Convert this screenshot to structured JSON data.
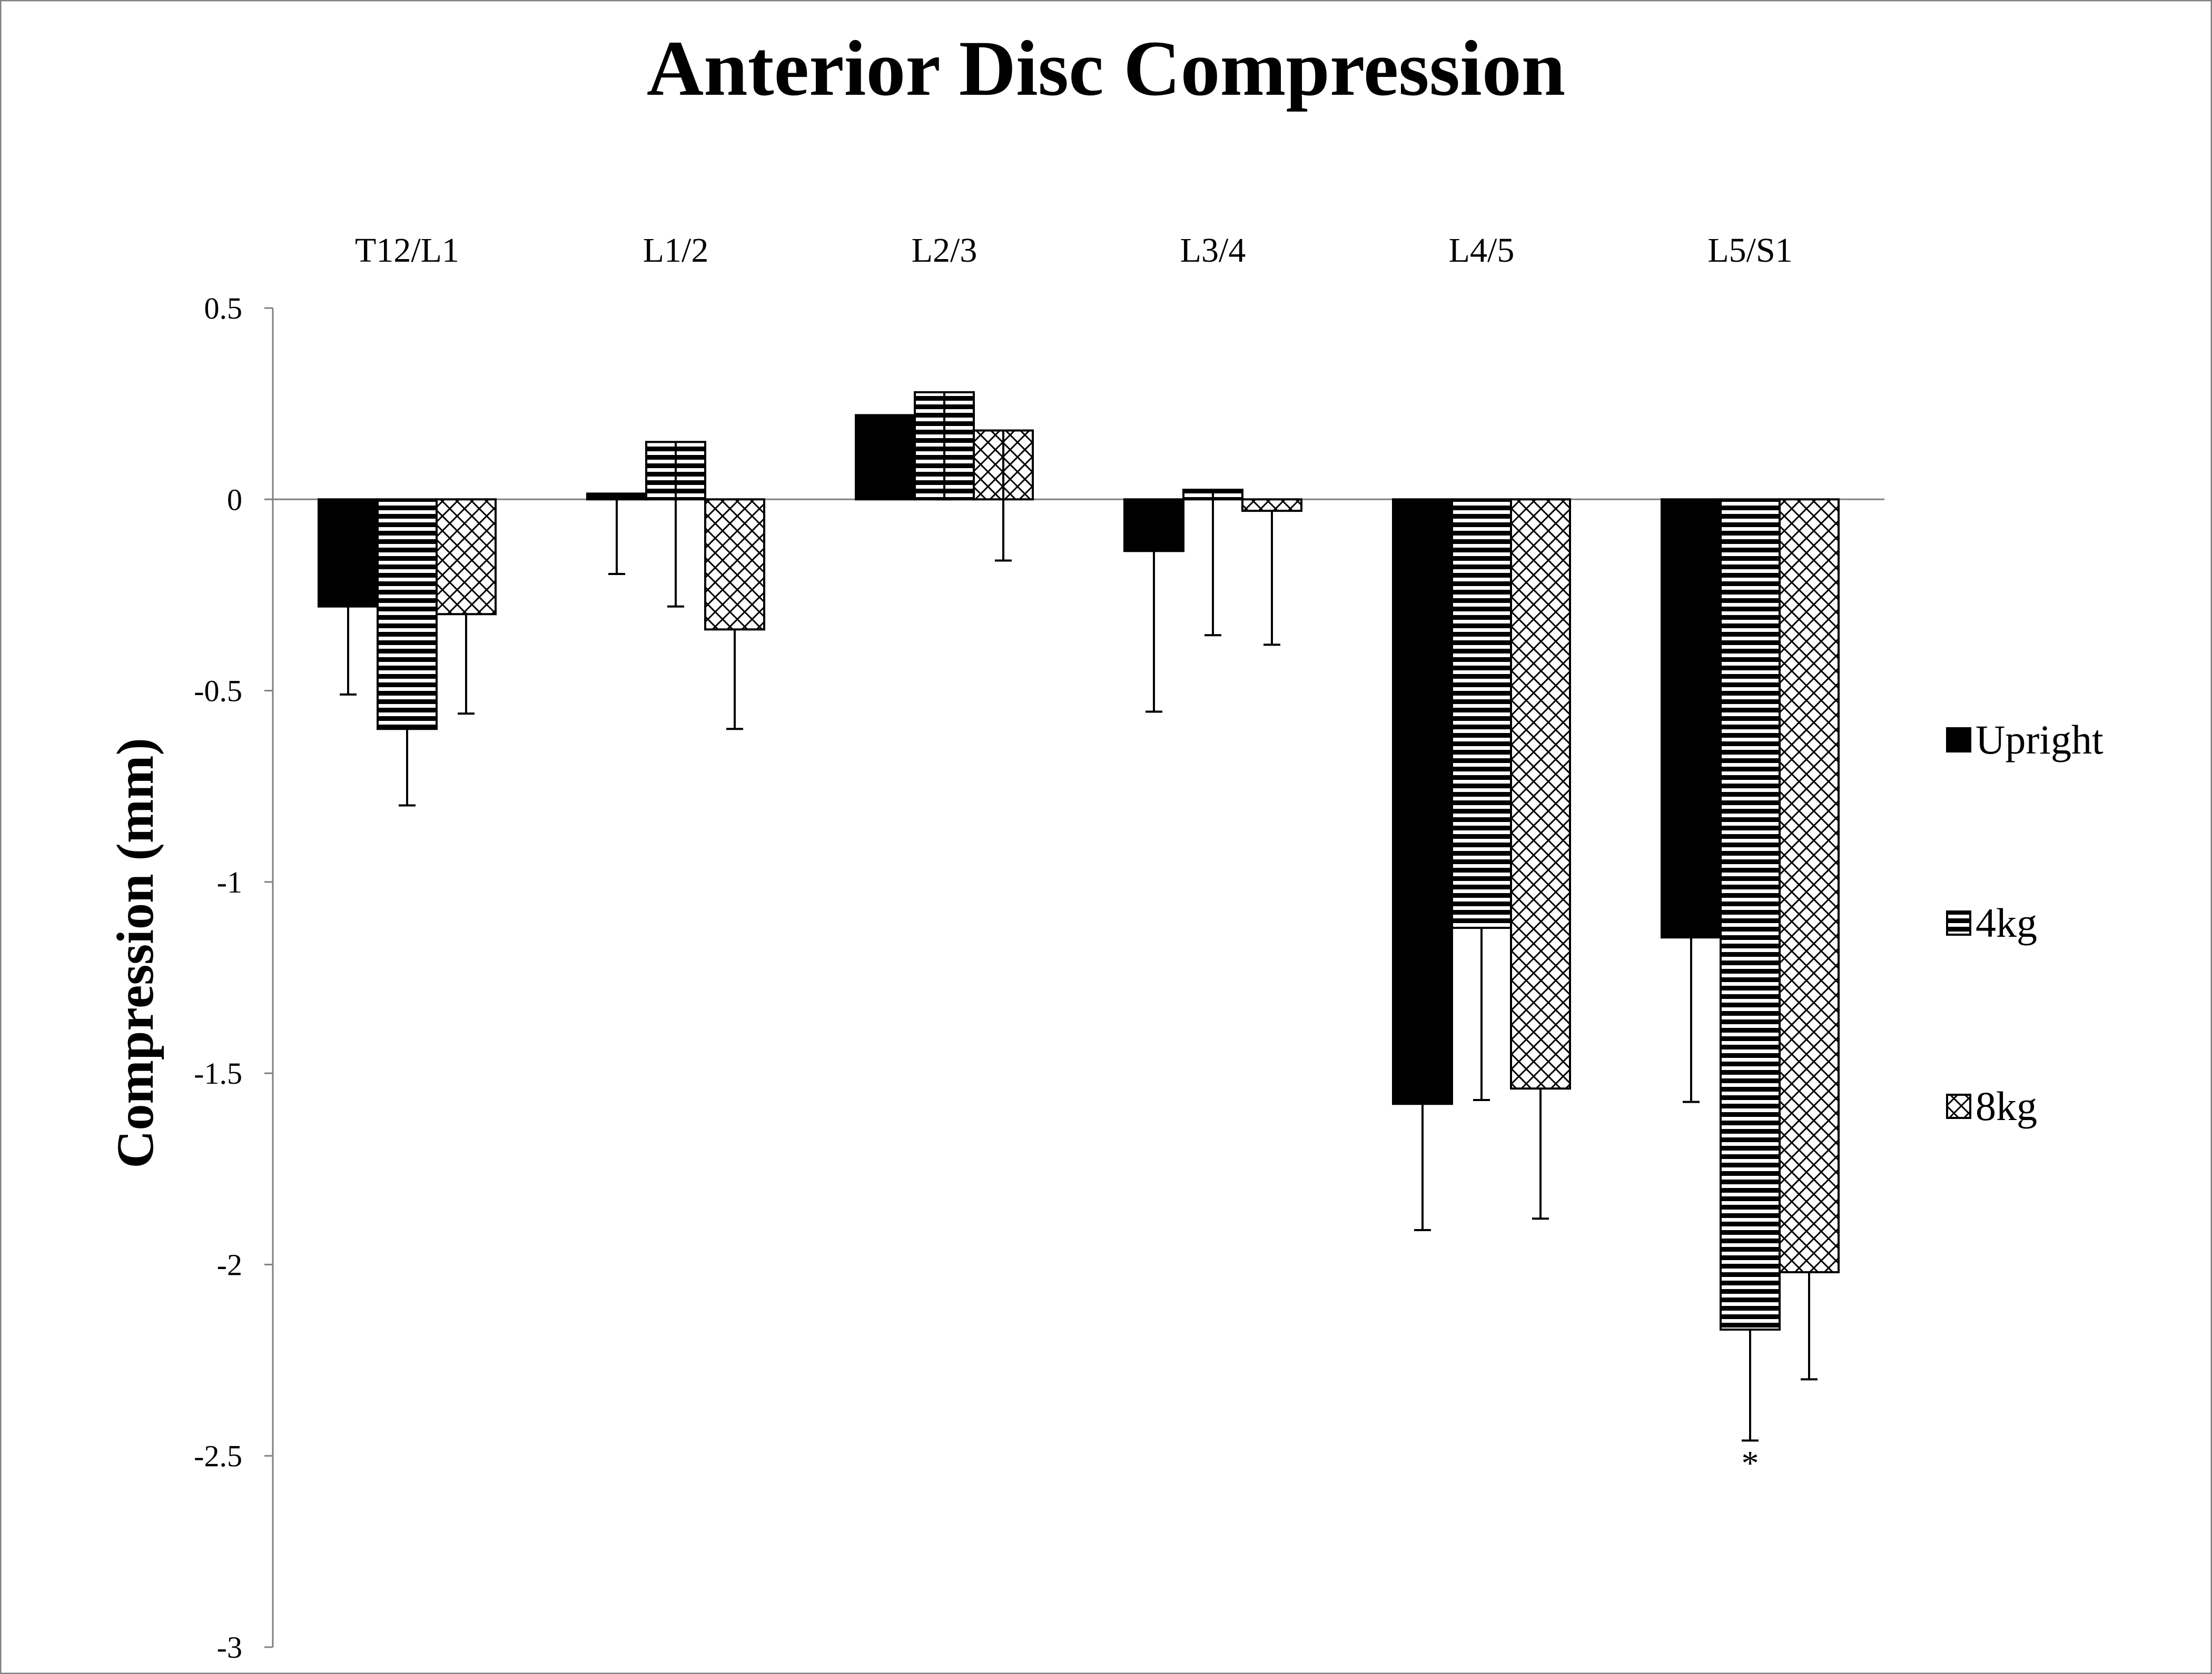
{
  "chart_data": {
    "type": "bar",
    "title": "Anterior Disc Compression",
    "xlabel": "",
    "ylabel": "Compression (mm)",
    "ylim": [
      -3,
      0.5
    ],
    "yticks": [
      0.5,
      0,
      -0.5,
      -1,
      -1.5,
      -2,
      -2.5,
      -3
    ],
    "ytick_labels": [
      "0.5",
      "0",
      "-0.5",
      "-1",
      "-1.5",
      "-2",
      "-2.5",
      "-3"
    ],
    "categories": [
      "T12/L1",
      "L1/2",
      "L2/3",
      "L3/4",
      "L4/5",
      "L5/S1"
    ],
    "category_labels_position": "top",
    "grid": false,
    "legend_position": "right",
    "series": [
      {
        "name": "Upright",
        "pattern": "solid",
        "values": [
          -0.28,
          0.015,
          0.22,
          -0.135,
          -1.58,
          -1.145
        ],
        "errors": [
          0.23,
          0.21,
          0.0,
          0.42,
          0.33,
          0.43
        ]
      },
      {
        "name": "4kg",
        "pattern": "horizontal-stripes",
        "values": [
          -0.6,
          0.15,
          0.28,
          0.025,
          -1.12,
          -2.17
        ],
        "errors": [
          0.2,
          0.43,
          0.28,
          0.38,
          0.45,
          0.29
        ]
      },
      {
        "name": "8kg",
        "pattern": "crosshatch",
        "values": [
          -0.3,
          -0.34,
          0.18,
          -0.03,
          -1.54,
          -2.02
        ],
        "errors": [
          0.26,
          0.26,
          0.34,
          0.35,
          0.34,
          0.28
        ]
      }
    ],
    "annotations": [
      {
        "text": "*",
        "category": "L5/S1",
        "series": "4kg",
        "y": -2.5
      }
    ],
    "colors": {
      "bar_fill": "#000000",
      "background": "#ffffff",
      "axis": "#808080"
    }
  }
}
